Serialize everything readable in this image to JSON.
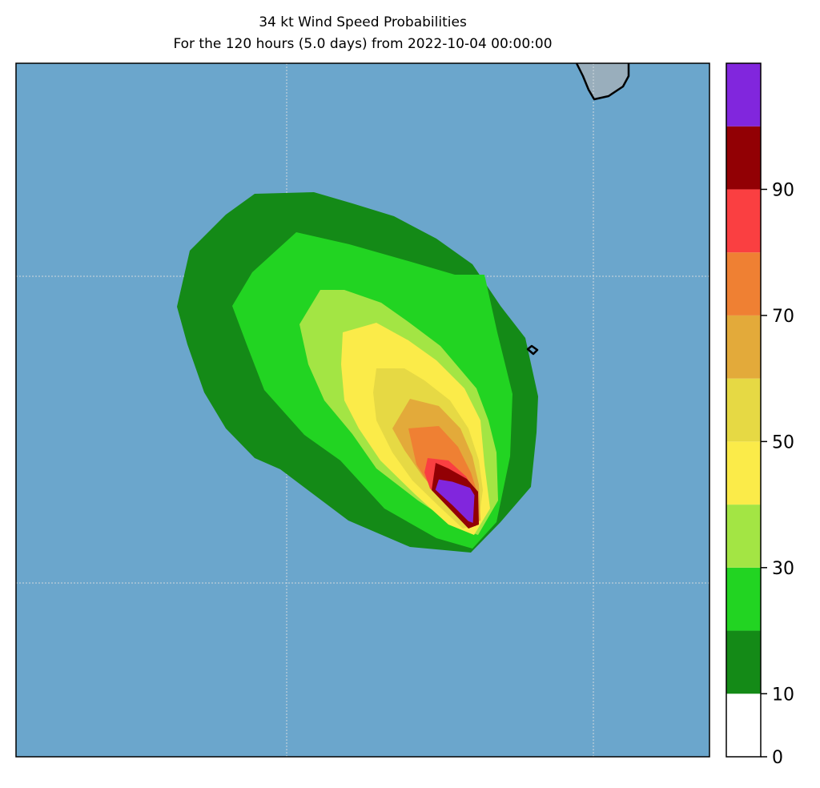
{
  "title": {
    "line1": "34 kt Wind Speed Probabilities",
    "line2": "For the 120 hours (5.0 days) from 2022-10-04 00:00:00"
  },
  "colors": {
    "ocean": "#6ba6cc",
    "land": "#99aebc",
    "gridline": "#d0d8dc"
  },
  "colorbar": {
    "levels": [
      {
        "min": 0,
        "max": 10,
        "color": "#ffffff"
      },
      {
        "min": 10,
        "max": 20,
        "color": "#148a17"
      },
      {
        "min": 20,
        "max": 30,
        "color": "#22d422"
      },
      {
        "min": 30,
        "max": 40,
        "color": "#a3e544"
      },
      {
        "min": 40,
        "max": 50,
        "color": "#fbeb49"
      },
      {
        "min": 50,
        "max": 60,
        "color": "#e6d944"
      },
      {
        "min": 60,
        "max": 70,
        "color": "#e3aa3a"
      },
      {
        "min": 70,
        "max": 80,
        "color": "#ef8033"
      },
      {
        "min": 80,
        "max": 90,
        "color": "#fa3f41"
      },
      {
        "min": 90,
        "max": 100,
        "color": "#920004"
      },
      {
        "min": 100,
        "max": 110,
        "color": "#8126dd"
      }
    ],
    "tick_labels": [
      "0",
      "10",
      "30",
      "50",
      "70",
      "90"
    ]
  }
}
